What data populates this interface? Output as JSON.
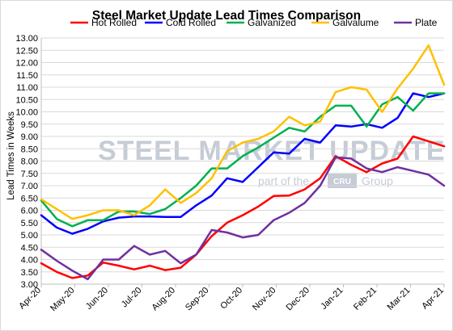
{
  "chart_data": {
    "type": "line",
    "title": "Steel Market Update Lead Times Comparison",
    "ylabel": "Lead Times in Weeks",
    "xlabel": "",
    "ylim": [
      3.0,
      13.0
    ],
    "yticks": [
      "3.00",
      "3.50",
      "4.00",
      "4.50",
      "5.00",
      "5.50",
      "6.00",
      "6.50",
      "7.00",
      "7.50",
      "8.00",
      "8.50",
      "9.00",
      "9.50",
      "10.00",
      "10.50",
      "11.00",
      "11.50",
      "12.00",
      "12.50",
      "13.00"
    ],
    "xticks": [
      "Apr-20",
      "May-20",
      "Jun-20",
      "Jul-20",
      "Aug-20",
      "Sep-20",
      "Oct-20",
      "Nov-20",
      "Dec-20",
      "Jan-21",
      "Feb-21",
      "Mar-21",
      "Apr-21"
    ],
    "x_points": 27,
    "grid": true,
    "legend_position": "top",
    "watermark": {
      "main": "STEEL MARKET UPDATE",
      "sub_prefix": "part of the",
      "box": "CRU",
      "sub_suffix": "Group"
    },
    "series": [
      {
        "name": "Hot Rolled",
        "color": "#ff0000",
        "values": [
          3.85,
          3.5,
          3.25,
          3.35,
          3.88,
          3.75,
          3.6,
          3.75,
          3.57,
          3.67,
          4.2,
          4.95,
          5.5,
          5.8,
          6.15,
          6.58,
          6.6,
          6.85,
          7.3,
          8.2,
          7.85,
          7.55,
          7.9,
          8.1,
          9.0,
          8.8,
          8.6
        ]
      },
      {
        "name": "Cold Rolled",
        "color": "#0000ff",
        "values": [
          5.8,
          5.3,
          5.05,
          5.25,
          5.55,
          5.7,
          5.75,
          5.75,
          5.73,
          5.73,
          6.2,
          6.6,
          7.3,
          7.15,
          7.75,
          8.35,
          8.3,
          8.9,
          8.75,
          9.45,
          9.4,
          9.5,
          9.35,
          9.75,
          10.75,
          10.6,
          10.75
        ]
      },
      {
        "name": "Galvanized",
        "color": "#00b050",
        "values": [
          6.4,
          5.65,
          5.35,
          5.6,
          5.6,
          5.95,
          5.95,
          5.85,
          6.05,
          6.5,
          7.0,
          7.7,
          7.7,
          8.2,
          8.55,
          8.95,
          9.35,
          9.2,
          9.8,
          10.25,
          10.25,
          9.4,
          10.3,
          10.6,
          10.05,
          10.75,
          10.75
        ]
      },
      {
        "name": "Galvalume",
        "color": "#ffc000",
        "values": [
          6.45,
          6.05,
          5.65,
          5.8,
          6.0,
          6.0,
          5.8,
          6.2,
          6.85,
          6.3,
          6.7,
          7.3,
          8.4,
          8.75,
          8.9,
          9.2,
          9.8,
          9.45,
          9.6,
          10.8,
          11.0,
          10.9,
          10.0,
          10.95,
          11.75,
          12.7,
          11.1
        ]
      },
      {
        "name": "Plate",
        "color": "#7030a0",
        "values": [
          4.4,
          3.95,
          3.55,
          3.2,
          4.0,
          4.0,
          4.55,
          4.2,
          4.35,
          3.85,
          4.2,
          5.2,
          5.1,
          4.9,
          5.0,
          5.6,
          5.9,
          6.3,
          7.0,
          8.15,
          8.1,
          7.7,
          7.55,
          7.75,
          7.6,
          7.45,
          7.0
        ]
      }
    ]
  }
}
